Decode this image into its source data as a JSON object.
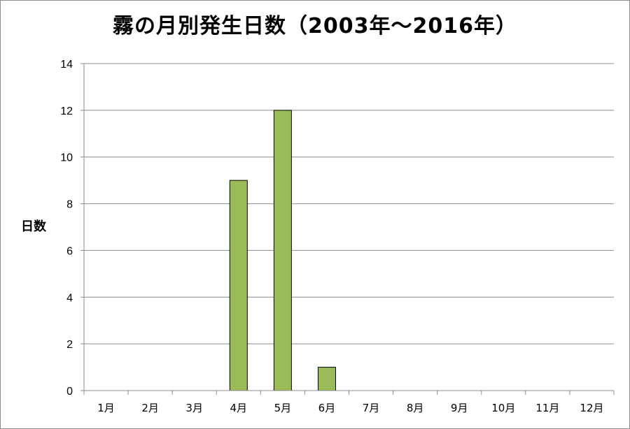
{
  "chart_data": {
    "type": "bar",
    "title": "霧の月別発生日数（2003年～2016年）",
    "xlabel": "",
    "ylabel": "日数",
    "categories": [
      "1月",
      "2月",
      "3月",
      "4月",
      "5月",
      "6月",
      "7月",
      "8月",
      "9月",
      "10月",
      "11月",
      "12月"
    ],
    "values": [
      0,
      0,
      0,
      9,
      12,
      1,
      0,
      0,
      0,
      0,
      0,
      0
    ],
    "ylim": [
      0,
      14
    ],
    "yticks": [
      0,
      2,
      4,
      6,
      8,
      10,
      12,
      14
    ],
    "grid": "horizontal",
    "legend": "none",
    "colors": {
      "bar_fill": "#9BBB59",
      "bar_stroke": "#000000",
      "grid": "#8c8c8c",
      "axis": "#8c8c8c"
    }
  }
}
